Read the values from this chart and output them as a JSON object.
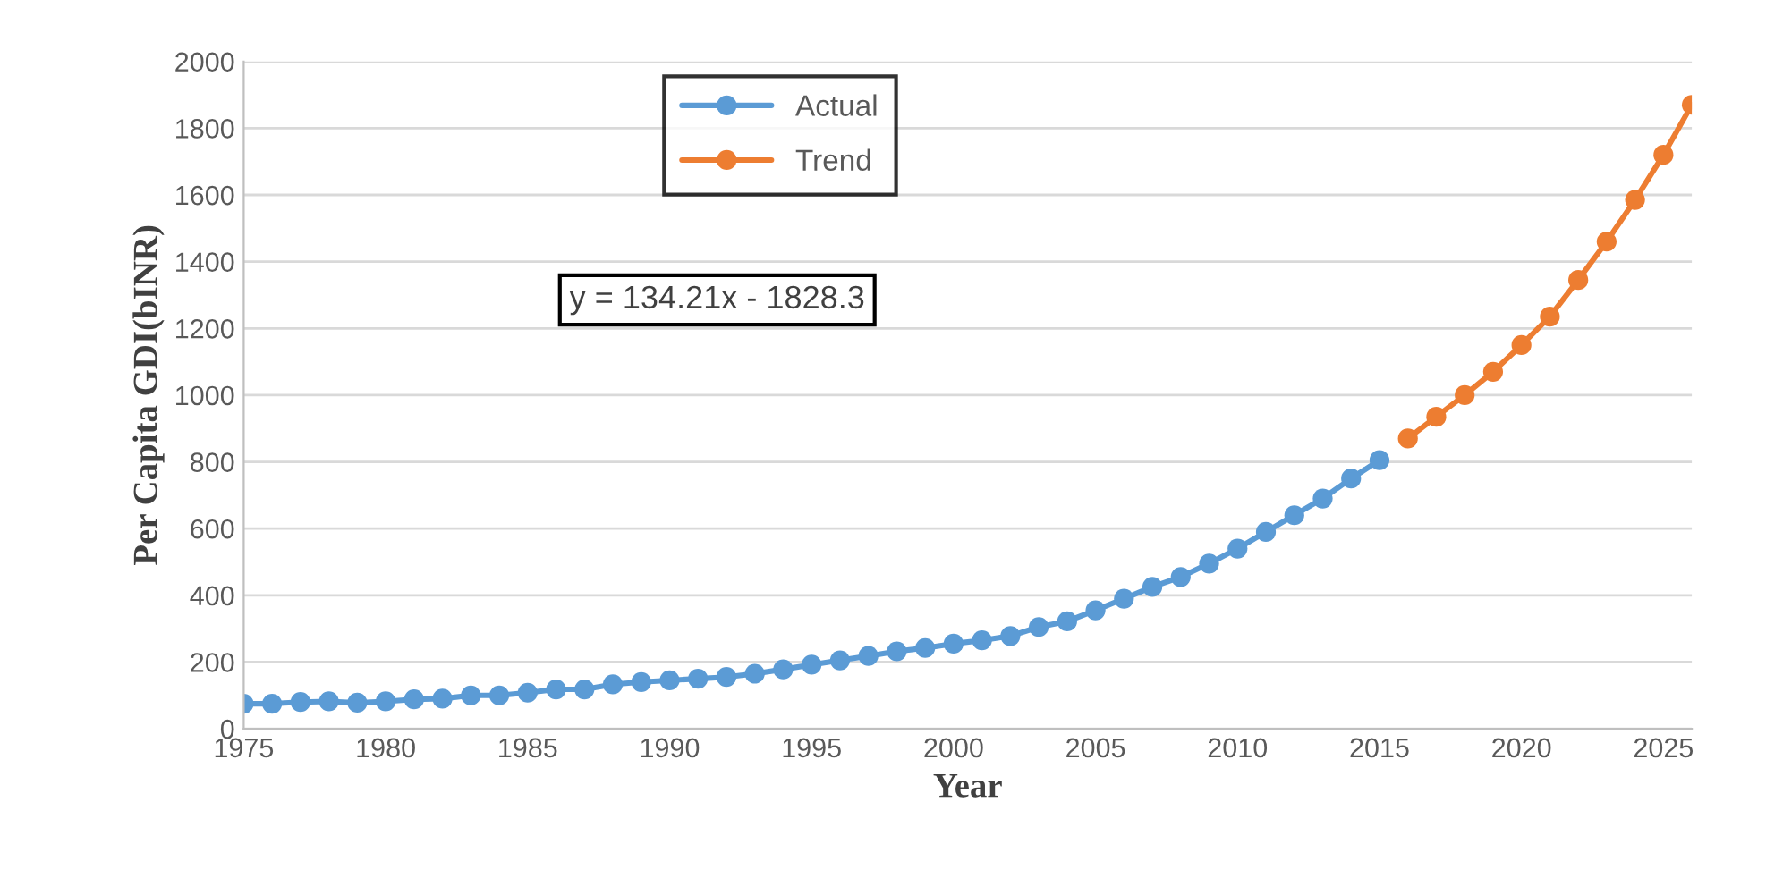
{
  "chart_data": {
    "type": "line",
    "xlabel": "Year",
    "ylabel": "Per Capita GDI(bINR)",
    "annotations": [
      "y = 134.21x - 1828.3"
    ],
    "series": [
      {
        "name": "Actual",
        "color": "#5b9bd5",
        "x": [
          1975,
          1976,
          1977,
          1978,
          1979,
          1980,
          1981,
          1982,
          1983,
          1984,
          1985,
          1986,
          1987,
          1988,
          1989,
          1990,
          1991,
          1992,
          1993,
          1994,
          1995,
          1996,
          1997,
          1998,
          1999,
          2000,
          2001,
          2002,
          2003,
          2004,
          2005,
          2006,
          2007,
          2008,
          2009,
          2010,
          2011,
          2012,
          2013,
          2014,
          2015
        ],
        "values": [
          75,
          75,
          80,
          82,
          78,
          82,
          88,
          90,
          100,
          100,
          108,
          118,
          118,
          133,
          140,
          145,
          150,
          155,
          165,
          178,
          192,
          205,
          218,
          232,
          242,
          255,
          265,
          278,
          305,
          322,
          355,
          390,
          425,
          455,
          495,
          540,
          590,
          640,
          690,
          750,
          805
        ]
      },
      {
        "name": "Trend",
        "color": "#ed7d31",
        "x": [
          2016,
          2017,
          2018,
          2019,
          2020,
          2021,
          2022,
          2023,
          2024,
          2025,
          2026
        ],
        "values": [
          870,
          935,
          1000,
          1070,
          1150,
          1235,
          1345,
          1460,
          1585,
          1720,
          1870
        ]
      }
    ],
    "xlim": [
      1975,
      2026
    ],
    "xticks": [
      1975,
      1980,
      1985,
      1990,
      1995,
      2000,
      2005,
      2010,
      2015,
      2020,
      2025
    ],
    "ylim": [
      0,
      2000
    ],
    "yticks": [
      0,
      200,
      400,
      600,
      800,
      1000,
      1200,
      1400,
      1600,
      1800,
      2000
    ],
    "grid": "y",
    "legend": "top",
    "marker": "circle",
    "line_style": "solid"
  }
}
